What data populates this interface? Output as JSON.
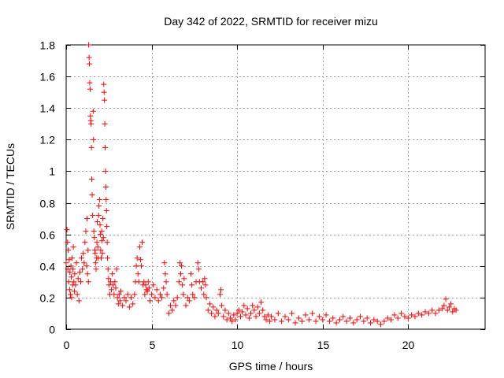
{
  "chart_data": {
    "type": "scatter",
    "title": "Day 342 of 2022, SRMTID for receiver mizu",
    "xlabel": "GPS time / hours",
    "ylabel": "SRMTID / TECUs",
    "xlim": [
      0,
      24.5
    ],
    "ylim": [
      0,
      1.8
    ],
    "xticks": [
      0,
      5,
      10,
      15,
      20
    ],
    "xtick_labels": [
      "0",
      "5",
      "10",
      "15",
      "20"
    ],
    "yticks": [
      0,
      0.2,
      0.4,
      0.6,
      0.8,
      1.0,
      1.2,
      1.4,
      1.6,
      1.8
    ],
    "ytick_labels": [
      "0",
      "0.2",
      "0.4",
      "0.6",
      "0.8",
      "1",
      "1.2",
      "1.4",
      "1.6",
      "1.8"
    ],
    "grid": true,
    "marker": "plus",
    "series": [
      {
        "name": "SRMTID",
        "color": "#ff0000",
        "points": [
          [
            0.0,
            0.42
          ],
          [
            0.05,
            0.63
          ],
          [
            0.08,
            0.55
          ],
          [
            0.1,
            0.38
          ],
          [
            0.12,
            0.5
          ],
          [
            0.15,
            0.3
          ],
          [
            0.18,
            0.44
          ],
          [
            0.2,
            0.25
          ],
          [
            0.22,
            0.36
          ],
          [
            0.25,
            0.22
          ],
          [
            0.28,
            0.4
          ],
          [
            0.3,
            0.33
          ],
          [
            0.32,
            0.2
          ],
          [
            0.35,
            0.45
          ],
          [
            0.38,
            0.28
          ],
          [
            0.4,
            0.38
          ],
          [
            0.42,
            0.52
          ],
          [
            0.45,
            0.3
          ],
          [
            0.48,
            0.24
          ],
          [
            0.5,
            0.35
          ],
          [
            0.55,
            0.28
          ],
          [
            0.6,
            0.42
          ],
          [
            0.65,
            0.22
          ],
          [
            0.7,
            0.32
          ],
          [
            0.75,
            0.18
          ],
          [
            0.8,
            0.36
          ],
          [
            0.85,
            0.3
          ],
          [
            0.9,
            0.45
          ],
          [
            0.95,
            0.38
          ],
          [
            1.0,
            0.48
          ],
          [
            1.05,
            0.42
          ],
          [
            1.1,
            0.55
          ],
          [
            1.15,
            0.62
          ],
          [
            1.2,
            0.4
          ],
          [
            1.22,
            0.7
          ],
          [
            1.25,
            0.35
          ],
          [
            1.28,
            0.5
          ],
          [
            1.3,
            0.3
          ],
          [
            1.32,
            1.8
          ],
          [
            1.34,
            1.72
          ],
          [
            1.36,
            1.68
          ],
          [
            1.38,
            1.56
          ],
          [
            1.4,
            1.52
          ],
          [
            1.42,
            1.35
          ],
          [
            1.44,
            1.32
          ],
          [
            1.46,
            1.3
          ],
          [
            1.48,
            1.15
          ],
          [
            1.5,
            0.95
          ],
          [
            1.52,
            0.85
          ],
          [
            1.55,
            0.72
          ],
          [
            1.58,
            1.38
          ],
          [
            1.6,
            1.2
          ],
          [
            1.62,
            0.62
          ],
          [
            1.65,
            0.58
          ],
          [
            1.68,
            0.5
          ],
          [
            1.7,
            0.48
          ],
          [
            1.72,
            0.42
          ],
          [
            1.75,
            0.38
          ],
          [
            1.78,
            0.45
          ],
          [
            1.8,
            0.55
          ],
          [
            1.82,
            0.68
          ],
          [
            1.85,
            0.52
          ],
          [
            1.88,
            0.45
          ],
          [
            1.9,
            0.72
          ],
          [
            1.92,
            0.78
          ],
          [
            1.95,
            0.82
          ],
          [
            1.98,
            0.66
          ],
          [
            2.0,
            0.6
          ],
          [
            2.02,
            0.5
          ],
          [
            2.05,
            0.45
          ],
          [
            2.08,
            0.62
          ],
          [
            2.1,
            0.56
          ],
          [
            2.12,
            0.48
          ],
          [
            2.15,
            0.7
          ],
          [
            2.18,
            0.58
          ],
          [
            2.2,
            1.55
          ],
          [
            2.22,
            1.5
          ],
          [
            2.24,
            1.45
          ],
          [
            2.26,
            1.3
          ],
          [
            2.28,
            1.15
          ],
          [
            2.3,
            1.0
          ],
          [
            2.32,
            0.9
          ],
          [
            2.34,
            0.82
          ],
          [
            2.36,
            0.75
          ],
          [
            2.38,
            0.65
          ],
          [
            2.4,
            0.55
          ],
          [
            2.42,
            0.45
          ],
          [
            2.45,
            0.38
          ],
          [
            2.48,
            0.32
          ],
          [
            2.5,
            0.28
          ],
          [
            2.55,
            0.22
          ],
          [
            2.6,
            0.3
          ],
          [
            2.65,
            0.25
          ],
          [
            2.7,
            0.35
          ],
          [
            2.75,
            0.28
          ],
          [
            2.8,
            0.22
          ],
          [
            2.85,
            0.3
          ],
          [
            2.9,
            0.26
          ],
          [
            2.95,
            0.38
          ],
          [
            3.0,
            0.2
          ],
          [
            3.05,
            0.16
          ],
          [
            3.1,
            0.22
          ],
          [
            3.15,
            0.18
          ],
          [
            3.2,
            0.24
          ],
          [
            3.3,
            0.15
          ],
          [
            3.4,
            0.2
          ],
          [
            3.5,
            0.18
          ],
          [
            3.6,
            0.22
          ],
          [
            3.7,
            0.14
          ],
          [
            3.8,
            0.2
          ],
          [
            3.9,
            0.16
          ],
          [
            4.0,
            0.22
          ],
          [
            4.05,
            0.3
          ],
          [
            4.1,
            0.4
          ],
          [
            4.15,
            0.45
          ],
          [
            4.2,
            0.35
          ],
          [
            4.25,
            0.3
          ],
          [
            4.3,
            0.52
          ],
          [
            4.35,
            0.44
          ],
          [
            4.4,
            0.4
          ],
          [
            4.45,
            0.55
          ],
          [
            4.5,
            0.28
          ],
          [
            4.55,
            0.3
          ],
          [
            4.6,
            0.22
          ],
          [
            4.65,
            0.28
          ],
          [
            4.7,
            0.25
          ],
          [
            4.75,
            0.24
          ],
          [
            4.8,
            0.3
          ],
          [
            4.85,
            0.26
          ],
          [
            4.9,
            0.18
          ],
          [
            5.0,
            0.22
          ],
          [
            5.1,
            0.28
          ],
          [
            5.2,
            0.2
          ],
          [
            5.3,
            0.25
          ],
          [
            5.4,
            0.18
          ],
          [
            5.5,
            0.22
          ],
          [
            5.6,
            0.2
          ],
          [
            5.7,
            0.26
          ],
          [
            5.75,
            0.42
          ],
          [
            5.8,
            0.35
          ],
          [
            5.85,
            0.3
          ],
          [
            5.9,
            0.22
          ],
          [
            6.0,
            0.1
          ],
          [
            6.1,
            0.15
          ],
          [
            6.2,
            0.12
          ],
          [
            6.3,
            0.18
          ],
          [
            6.4,
            0.15
          ],
          [
            6.5,
            0.2
          ],
          [
            6.6,
            0.3
          ],
          [
            6.65,
            0.42
          ],
          [
            6.7,
            0.35
          ],
          [
            6.75,
            0.4
          ],
          [
            6.8,
            0.28
          ],
          [
            6.85,
            0.22
          ],
          [
            6.9,
            0.32
          ],
          [
            7.0,
            0.15
          ],
          [
            7.1,
            0.2
          ],
          [
            7.2,
            0.18
          ],
          [
            7.3,
            0.35
          ],
          [
            7.35,
            0.28
          ],
          [
            7.4,
            0.22
          ],
          [
            7.5,
            0.2
          ],
          [
            7.6,
            0.3
          ],
          [
            7.7,
            0.42
          ],
          [
            7.75,
            0.38
          ],
          [
            7.8,
            0.3
          ],
          [
            7.9,
            0.26
          ],
          [
            8.0,
            0.3
          ],
          [
            8.05,
            0.22
          ],
          [
            8.1,
            0.32
          ],
          [
            8.15,
            0.28
          ],
          [
            8.2,
            0.2
          ],
          [
            8.3,
            0.12
          ],
          [
            8.4,
            0.16
          ],
          [
            8.5,
            0.1
          ],
          [
            8.6,
            0.14
          ],
          [
            8.7,
            0.08
          ],
          [
            8.8,
            0.12
          ],
          [
            8.9,
            0.1
          ],
          [
            9.0,
            0.22
          ],
          [
            9.05,
            0.25
          ],
          [
            9.1,
            0.15
          ],
          [
            9.2,
            0.08
          ],
          [
            9.3,
            0.12
          ],
          [
            9.4,
            0.06
          ],
          [
            9.5,
            0.1
          ],
          [
            9.6,
            0.07
          ],
          [
            9.7,
            0.05
          ],
          [
            9.8,
            0.09
          ],
          [
            9.9,
            0.06
          ],
          [
            10.0,
            0.1
          ],
          [
            10.1,
            0.12
          ],
          [
            10.2,
            0.08
          ],
          [
            10.3,
            0.11
          ],
          [
            10.4,
            0.15
          ],
          [
            10.5,
            0.09
          ],
          [
            10.6,
            0.13
          ],
          [
            10.7,
            0.07
          ],
          [
            10.8,
            0.1
          ],
          [
            10.9,
            0.15
          ],
          [
            11.0,
            0.12
          ],
          [
            11.1,
            0.08
          ],
          [
            11.2,
            0.14
          ],
          [
            11.3,
            0.1
          ],
          [
            11.4,
            0.17
          ],
          [
            11.5,
            0.12
          ],
          [
            11.6,
            0.08
          ],
          [
            11.7,
            0.06
          ],
          [
            11.8,
            0.09
          ],
          [
            11.9,
            0.05
          ],
          [
            12.0,
            0.08
          ],
          [
            12.2,
            0.06
          ],
          [
            12.4,
            0.1
          ],
          [
            12.6,
            0.05
          ],
          [
            12.8,
            0.08
          ],
          [
            13.0,
            0.06
          ],
          [
            13.2,
            0.1
          ],
          [
            13.4,
            0.04
          ],
          [
            13.6,
            0.07
          ],
          [
            13.8,
            0.05
          ],
          [
            14.0,
            0.09
          ],
          [
            14.2,
            0.06
          ],
          [
            14.4,
            0.1
          ],
          [
            14.6,
            0.05
          ],
          [
            14.8,
            0.08
          ],
          [
            15.0,
            0.06
          ],
          [
            15.2,
            0.09
          ],
          [
            15.4,
            0.05
          ],
          [
            15.6,
            0.07
          ],
          [
            15.8,
            0.04
          ],
          [
            16.0,
            0.06
          ],
          [
            16.2,
            0.08
          ],
          [
            16.4,
            0.05
          ],
          [
            16.6,
            0.07
          ],
          [
            16.8,
            0.04
          ],
          [
            17.0,
            0.06
          ],
          [
            17.2,
            0.08
          ],
          [
            17.4,
            0.05
          ],
          [
            17.6,
            0.07
          ],
          [
            17.8,
            0.04
          ],
          [
            18.0,
            0.06
          ],
          [
            18.2,
            0.05
          ],
          [
            18.4,
            0.03
          ],
          [
            18.6,
            0.05
          ],
          [
            18.8,
            0.07
          ],
          [
            19.0,
            0.06
          ],
          [
            19.2,
            0.09
          ],
          [
            19.4,
            0.07
          ],
          [
            19.6,
            0.1
          ],
          [
            19.8,
            0.08
          ],
          [
            20.0,
            0.07
          ],
          [
            20.2,
            0.09
          ],
          [
            20.4,
            0.08
          ],
          [
            20.6,
            0.1
          ],
          [
            20.8,
            0.09
          ],
          [
            21.0,
            0.11
          ],
          [
            21.2,
            0.1
          ],
          [
            21.4,
            0.12
          ],
          [
            21.6,
            0.1
          ],
          [
            21.8,
            0.12
          ],
          [
            22.0,
            0.13
          ],
          [
            22.1,
            0.15
          ],
          [
            22.2,
            0.19
          ],
          [
            22.3,
            0.12
          ],
          [
            22.4,
            0.14
          ],
          [
            22.5,
            0.16
          ],
          [
            22.6,
            0.11
          ],
          [
            22.7,
            0.13
          ],
          [
            22.8,
            0.12
          ]
        ]
      }
    ]
  }
}
